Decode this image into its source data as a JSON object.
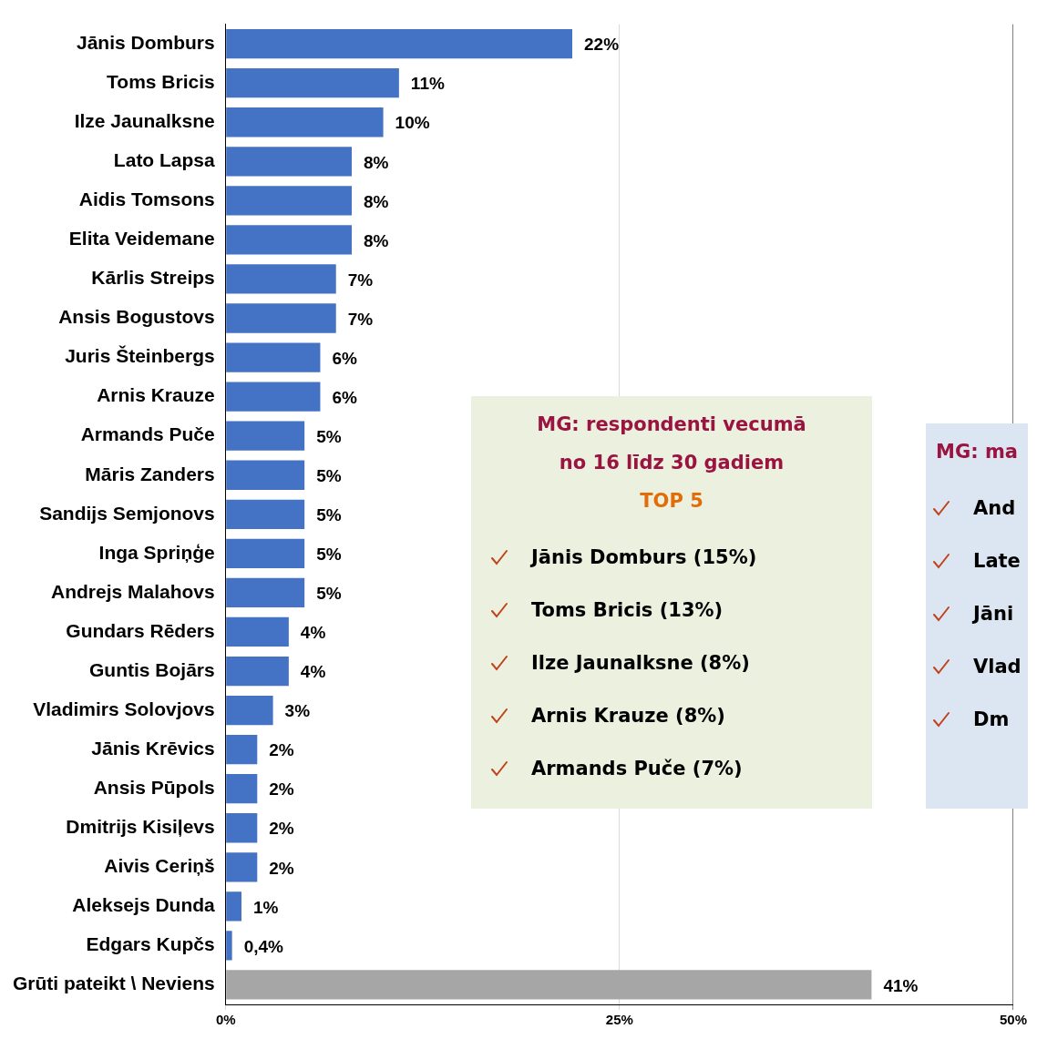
{
  "chart_data": {
    "type": "bar",
    "orientation": "horizontal",
    "categories": [
      "Jānis Domburs",
      "Toms Bricis",
      "Ilze Jaunalksne",
      "Lato Lapsa",
      "Aidis Tomsons",
      "Elita Veidemane",
      "Kārlis Streips",
      "Ansis Bogustovs",
      "Juris Šteinbergs",
      "Arnis Krauze",
      "Armands Puče",
      "Māris Zanders",
      "Sandijs Semjonovs",
      "Inga Spriņģe",
      "Andrejs Malahovs",
      "Gundars Rēders",
      "Guntis Bojārs",
      "Vladimirs Solovjovs",
      "Jānis Krēvics",
      "Ansis Pūpols",
      "Dmitrijs Kisiļevs",
      "Aivis Ceriņš",
      "Aleksejs Dunda",
      "Edgars Kupčs",
      "Grūti pateikt \\ Neviens"
    ],
    "values": [
      22,
      11,
      10,
      8,
      8,
      8,
      7,
      7,
      6,
      6,
      5,
      5,
      5,
      5,
      5,
      4,
      4,
      3,
      2,
      2,
      2,
      2,
      1,
      0.4,
      41
    ],
    "colors": [
      "#4472c4",
      "#4472c4",
      "#4472c4",
      "#4472c4",
      "#4472c4",
      "#4472c4",
      "#4472c4",
      "#4472c4",
      "#4472c4",
      "#4472c4",
      "#4472c4",
      "#4472c4",
      "#4472c4",
      "#4472c4",
      "#4472c4",
      "#4472c4",
      "#4472c4",
      "#4472c4",
      "#4472c4",
      "#4472c4",
      "#4472c4",
      "#4472c4",
      "#4472c4",
      "#4472c4",
      "#a6a6a6"
    ],
    "value_labels": [
      "22%",
      "11%",
      "10%",
      "8%",
      "8%",
      "8%",
      "7%",
      "7%",
      "6%",
      "6%",
      "5%",
      "5%",
      "5%",
      "5%",
      "5%",
      "4%",
      "4%",
      "3%",
      "2%",
      "2%",
      "2%",
      "2%",
      "1%",
      "0,4%",
      "41%"
    ],
    "xlim": [
      0,
      50
    ],
    "xticks": [
      {
        "value": 0,
        "label": "0%"
      },
      {
        "value": 25,
        "label": "25%"
      },
      {
        "value": 50,
        "label": "50%"
      }
    ],
    "grid": "x",
    "legend": false,
    "annotations": [
      "MG: respondenti vecumā",
      "no 16 līdz 30 gadiem",
      "TOP 5",
      "Jānis Domburs (15%)",
      "Toms Bricis (13%)",
      "Ilze Jaunalksne (8%)",
      "Arnis Krauze (8%)",
      "Armands Puče (7%)",
      "MG: ma",
      "And",
      "Late",
      "Jāni",
      "Vlad",
      "Dm"
    ]
  }
}
